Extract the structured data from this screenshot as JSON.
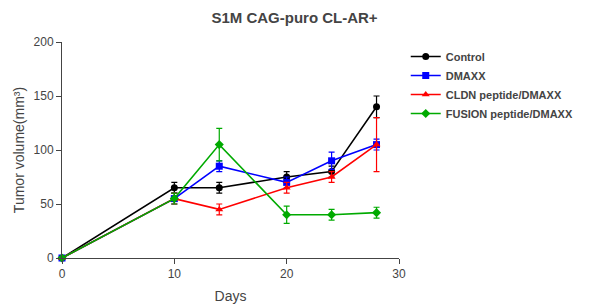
{
  "chart_data": {
    "type": "line",
    "title": "S1M CAG-puro CL-AR+",
    "x_label": "Days",
    "y_label": "Tumor volume(mm³)",
    "x": [
      0,
      10,
      14,
      20,
      24,
      28
    ],
    "series": [
      {
        "name": "Control",
        "color": "#000000",
        "marker": "circle",
        "values": [
          0,
          65,
          65,
          75,
          80,
          140
        ],
        "yerr": [
          0,
          5,
          5,
          5,
          5,
          10
        ]
      },
      {
        "name": "DMAXX",
        "color": "#0000FF",
        "marker": "square",
        "values": [
          0,
          55,
          85,
          70,
          90,
          105
        ],
        "yerr": [
          0,
          5,
          5,
          5,
          8,
          5
        ]
      },
      {
        "name": "CLDN peptide/DMAXX",
        "color": "#FF0000",
        "marker": "triangle",
        "values": [
          0,
          55,
          45,
          65,
          75,
          105
        ],
        "yerr": [
          0,
          5,
          5,
          5,
          5,
          25
        ]
      },
      {
        "name": "FUSION peptide/DMAXX",
        "color": "#00AA00",
        "marker": "diamond",
        "values": [
          0,
          55,
          105,
          40,
          40,
          42
        ],
        "yerr": [
          0,
          5,
          15,
          8,
          5,
          5
        ]
      }
    ],
    "xlim": [
      0,
      30
    ],
    "ylim": [
      0,
      200
    ],
    "xticks": [
      0,
      10,
      20,
      30
    ],
    "yticks": [
      0,
      50,
      100,
      150,
      200
    ],
    "grid": false,
    "legend": "right"
  }
}
